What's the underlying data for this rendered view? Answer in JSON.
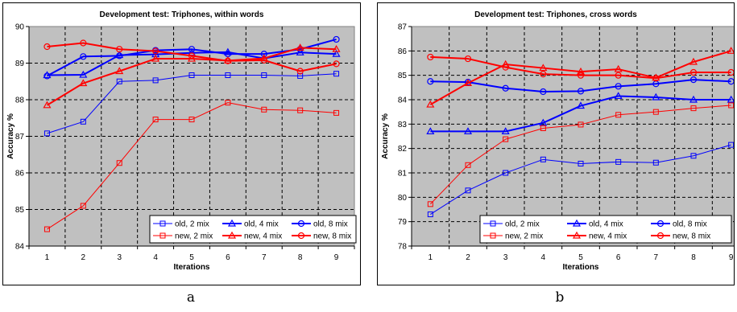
{
  "captions": [
    "a",
    "b"
  ],
  "chart_data": [
    {
      "type": "line",
      "title": "Development test: Triphones, within words",
      "xlabel": "Iterations",
      "ylabel": "Accuracy %",
      "x": [
        1,
        2,
        3,
        4,
        5,
        6,
        7,
        8,
        9
      ],
      "ylim": [
        84,
        90
      ],
      "yticks": [
        84,
        85,
        86,
        87,
        88,
        89,
        90
      ],
      "grid": true,
      "legend_position": "bottom-right",
      "series": [
        {
          "name": "old, 2 mix",
          "color": "#0000ff",
          "marker": "square",
          "width": 1,
          "values": [
            87.08,
            87.4,
            88.5,
            88.53,
            88.67,
            88.67,
            88.67,
            88.65,
            88.71
          ]
        },
        {
          "name": "old, 4 mix",
          "color": "#0000ff",
          "marker": "triangle",
          "width": 2,
          "values": [
            88.67,
            88.68,
            89.22,
            89.24,
            89.28,
            89.3,
            89.13,
            89.29,
            89.25
          ]
        },
        {
          "name": "old, 8 mix",
          "color": "#0000ff",
          "marker": "circle",
          "width": 2,
          "values": [
            88.65,
            89.18,
            89.2,
            89.35,
            89.38,
            89.25,
            89.25,
            89.38,
            89.65
          ]
        },
        {
          "name": "new, 2 mix",
          "color": "#ff0000",
          "marker": "square",
          "width": 1,
          "values": [
            84.46,
            85.1,
            86.27,
            87.46,
            87.46,
            87.92,
            87.73,
            87.71,
            87.64
          ]
        },
        {
          "name": "new, 4 mix",
          "color": "#ff0000",
          "marker": "triangle",
          "width": 2,
          "values": [
            87.85,
            88.45,
            88.78,
            89.12,
            89.12,
            89.07,
            89.13,
            89.42,
            89.38
          ]
        },
        {
          "name": "new, 8 mix",
          "color": "#ff0000",
          "marker": "circle",
          "width": 2,
          "values": [
            89.45,
            89.55,
            89.38,
            89.33,
            89.2,
            89.06,
            89.08,
            88.78,
            88.98
          ]
        }
      ]
    },
    {
      "type": "line",
      "title": "Development test: Triphones, cross words",
      "xlabel": "Iterations",
      "ylabel": "Accuracy %",
      "x": [
        1,
        2,
        3,
        4,
        5,
        6,
        7,
        8,
        9
      ],
      "ylim": [
        78,
        87
      ],
      "yticks": [
        78,
        79,
        80,
        81,
        82,
        83,
        84,
        85,
        86,
        87
      ],
      "grid": true,
      "legend_position": "bottom-right",
      "series": [
        {
          "name": "old, 2 mix",
          "color": "#0000ff",
          "marker": "square",
          "width": 1,
          "values": [
            79.3,
            80.28,
            81.0,
            81.55,
            81.38,
            81.45,
            81.42,
            81.7,
            82.15
          ]
        },
        {
          "name": "old, 4 mix",
          "color": "#0000ff",
          "marker": "triangle",
          "width": 2,
          "values": [
            82.7,
            82.7,
            82.7,
            83.05,
            83.75,
            84.15,
            84.1,
            84.0,
            84.0
          ]
        },
        {
          "name": "old, 8 mix",
          "color": "#0000ff",
          "marker": "circle",
          "width": 2,
          "values": [
            84.75,
            84.72,
            84.47,
            84.33,
            84.35,
            84.55,
            84.65,
            84.82,
            84.75
          ]
        },
        {
          "name": "new, 2 mix",
          "color": "#ff0000",
          "marker": "square",
          "width": 1,
          "values": [
            79.72,
            81.32,
            82.38,
            82.83,
            82.98,
            83.38,
            83.5,
            83.65,
            83.77
          ]
        },
        {
          "name": "new, 4 mix",
          "color": "#ff0000",
          "marker": "triangle",
          "width": 2,
          "values": [
            83.8,
            84.68,
            85.45,
            85.3,
            85.15,
            85.25,
            84.9,
            85.55,
            86.0
          ]
        },
        {
          "name": "new, 8 mix",
          "color": "#ff0000",
          "marker": "circle",
          "width": 2,
          "values": [
            85.75,
            85.68,
            85.33,
            85.05,
            85.0,
            85.0,
            84.88,
            85.12,
            85.12
          ]
        }
      ]
    }
  ]
}
